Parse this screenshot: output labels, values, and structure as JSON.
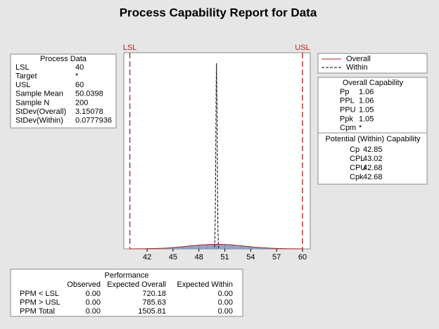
{
  "chart_data": {
    "type": "histogram",
    "title": "Process Capability Report for Data",
    "bins": [
      42,
      43,
      44,
      45,
      46,
      47,
      48,
      49,
      50,
      51,
      52,
      53,
      54,
      55,
      56,
      57,
      58
    ],
    "values": [
      0.01,
      0.015,
      0.025,
      0.045,
      0.065,
      0.09,
      0.11,
      0.125,
      0.13,
      0.115,
      0.09,
      0.07,
      0.045,
      0.03,
      0.015,
      0.005
    ],
    "color": "#8fa8cc",
    "xlim": [
      39.3,
      60.9
    ],
    "ylim": [
      0,
      5.42
    ],
    "xticks": [
      42,
      45,
      48,
      51,
      54,
      57,
      60
    ],
    "reference_lines": [
      {
        "label": "LSL",
        "value": 40,
        "color": "#b22222"
      },
      {
        "label": "USL",
        "value": 60,
        "color": "#b22222"
      }
    ],
    "series": [
      {
        "name": "Overall",
        "color": "#b22222",
        "style": "solid",
        "x": [
          40,
          41,
          42,
          43,
          44,
          45,
          46,
          47,
          48,
          49,
          50,
          51,
          52,
          53,
          54,
          55,
          56,
          57,
          58,
          59,
          60
        ],
        "values": [
          0.0008,
          0.0021,
          0.0049,
          0.0105,
          0.02,
          0.035,
          0.056,
          0.08,
          0.103,
          0.12,
          0.127,
          0.121,
          0.104,
          0.081,
          0.057,
          0.037,
          0.021,
          0.011,
          0.0052,
          0.0022,
          0.0009
        ]
      },
      {
        "name": "Within",
        "color": "#000000",
        "style": "dashed",
        "x": [
          49.8,
          49.85,
          49.9,
          49.95,
          50.0,
          50.04,
          50.1,
          50.15,
          50.2,
          50.25,
          50.3
        ],
        "values": [
          0.045,
          0.26,
          1.02,
          2.63,
          4.5,
          5.13,
          3.81,
          1.9,
          0.63,
          0.13,
          0.02
        ]
      }
    ]
  },
  "process_data": {
    "title": "Process Data",
    "rows": [
      [
        "LSL",
        "40"
      ],
      [
        "Target",
        "*"
      ],
      [
        "USL",
        "60"
      ],
      [
        "Sample Mean",
        "50.0398"
      ],
      [
        "Sample N",
        "200"
      ],
      [
        "StDev(Overall)",
        "3.15078"
      ],
      [
        "StDev(Within)",
        "0.0777936"
      ]
    ]
  },
  "overall_capability": {
    "title": "Overall Capability",
    "rows": [
      [
        "Pp",
        "1.06"
      ],
      [
        "PPL",
        "1.06"
      ],
      [
        "PPU",
        "1.05"
      ],
      [
        "Ppk",
        "1.05"
      ],
      [
        "Cpm",
        "*"
      ]
    ]
  },
  "within_capability": {
    "title": "Potential (Within) Capability",
    "rows": [
      [
        "Cp",
        "42.85"
      ],
      [
        "CPL",
        "43.02"
      ],
      [
        "CPU",
        "42.68"
      ],
      [
        "Cpk",
        "42.68"
      ]
    ]
  },
  "performance": {
    "title": "Performance",
    "columns": [
      "Observed",
      "Expected Overall",
      "Expected Within"
    ],
    "rows": [
      [
        "PPM < LSL",
        "0.00",
        "720.18",
        "0.00"
      ],
      [
        "PPM > USL",
        "0.00",
        "785.63",
        "0.00"
      ],
      [
        "PPM Total",
        "0.00",
        "1505.81",
        "0.00"
      ]
    ]
  }
}
